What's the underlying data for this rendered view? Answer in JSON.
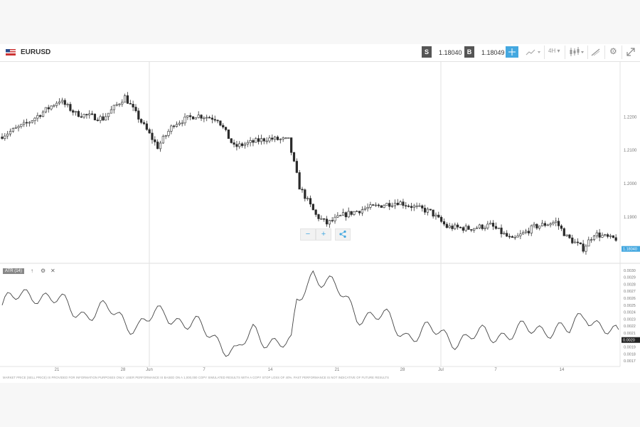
{
  "header": {
    "symbol": "EURUSD",
    "sell_label": "S",
    "sell_price": "1.18040",
    "buy_label": "B",
    "buy_price": "1.18049",
    "timeframe": "4H"
  },
  "zoom": {
    "out_label": "−",
    "in_label": "+",
    "share_label": "<"
  },
  "indicator": {
    "label": "ATR (14)",
    "up_icon": "↑",
    "gear_icon": "⚙",
    "close_icon": "✕"
  },
  "disclaimer": "MARKET PRICE (SELL PRICE) IS PROVIDED FOR INFORMATION PURPOSES ONLY. USER PERFORMANCE IS BASED ON A 1,000,000 COPY SIMULATED RESULTS WITH A COPY STOP LOSS OF 40%. PAST PERFORMANCE IS NOT INDICATIVE OF FUTURE RESULTS",
  "colors": {
    "accent": "#44a8e0",
    "candle": "#222222",
    "grid": "#e3e3e3"
  },
  "chart_data": [
    {
      "type": "candlestick",
      "name": "EURUSD",
      "y_ticks": [
        "1.2200",
        "1.2100",
        "1.2000",
        "1.1900"
      ],
      "y_tick_values": [
        1.22,
        1.21,
        1.2,
        1.19
      ],
      "ylim": [
        1.1765,
        1.2365
      ],
      "current_price_label": "1.18040",
      "current_price": 1.1804,
      "x_ticks": [
        "21",
        "28",
        "Jun",
        "7",
        "14",
        "21",
        "28",
        "Jul",
        "7",
        "14"
      ],
      "anchors": [
        [
          0,
          1.214
        ],
        [
          10,
          1.218
        ],
        [
          22,
          1.225
        ],
        [
          28,
          1.221
        ],
        [
          38,
          1.2195
        ],
        [
          46,
          1.226
        ],
        [
          58,
          1.211
        ],
        [
          64,
          1.218
        ],
        [
          72,
          1.2205
        ],
        [
          80,
          1.2195
        ],
        [
          86,
          1.211
        ],
        [
          98,
          1.2135
        ],
        [
          106,
          1.213
        ],
        [
          110,
          1.199
        ],
        [
          116,
          1.1905
        ],
        [
          120,
          1.188
        ],
        [
          126,
          1.1905
        ],
        [
          134,
          1.1925
        ],
        [
          146,
          1.1945
        ],
        [
          158,
          1.1915
        ],
        [
          164,
          1.187
        ],
        [
          172,
          1.1865
        ],
        [
          180,
          1.1875
        ],
        [
          188,
          1.183
        ],
        [
          196,
          1.187
        ],
        [
          204,
          1.1885
        ],
        [
          208,
          1.184
        ],
        [
          214,
          1.1805
        ],
        [
          218,
          1.185
        ],
        [
          224,
          1.1835
        ]
      ]
    },
    {
      "type": "line",
      "name": "ATR (14)",
      "y_ticks": [
        "0.0030",
        "0.0029",
        "0.0028",
        "0.0027",
        "0.0026",
        "0.0025",
        "0.0024",
        "0.0023",
        "0.0022",
        "0.0021",
        "0.0019",
        "0.0018",
        "0.0017"
      ],
      "y_tick_values": [
        0.003,
        0.0029,
        0.0028,
        0.0027,
        0.0026,
        0.0025,
        0.0024,
        0.0023,
        0.0022,
        0.0021,
        0.0019,
        0.0018,
        0.0017
      ],
      "ylim": [
        0.00165,
        0.00308
      ],
      "current_value_label": "0.0020",
      "current_value": 0.002,
      "anchors": [
        [
          0,
          0.0025
        ],
        [
          12,
          0.0027
        ],
        [
          22,
          0.0025
        ],
        [
          30,
          0.0024
        ],
        [
          40,
          0.0024
        ],
        [
          50,
          0.0022
        ],
        [
          60,
          0.0024
        ],
        [
          70,
          0.0022
        ],
        [
          80,
          0.002
        ],
        [
          86,
          0.0018
        ],
        [
          92,
          0.0021
        ],
        [
          100,
          0.002
        ],
        [
          106,
          0.0019
        ],
        [
          108,
          0.0025
        ],
        [
          114,
          0.003
        ],
        [
          120,
          0.0028
        ],
        [
          130,
          0.0024
        ],
        [
          140,
          0.0023
        ],
        [
          148,
          0.0021
        ],
        [
          160,
          0.0021
        ],
        [
          170,
          0.002
        ],
        [
          180,
          0.0021
        ],
        [
          190,
          0.0021
        ],
        [
          200,
          0.0022
        ],
        [
          208,
          0.0021
        ],
        [
          214,
          0.0024
        ],
        [
          220,
          0.0022
        ],
        [
          226,
          0.002
        ]
      ]
    }
  ]
}
